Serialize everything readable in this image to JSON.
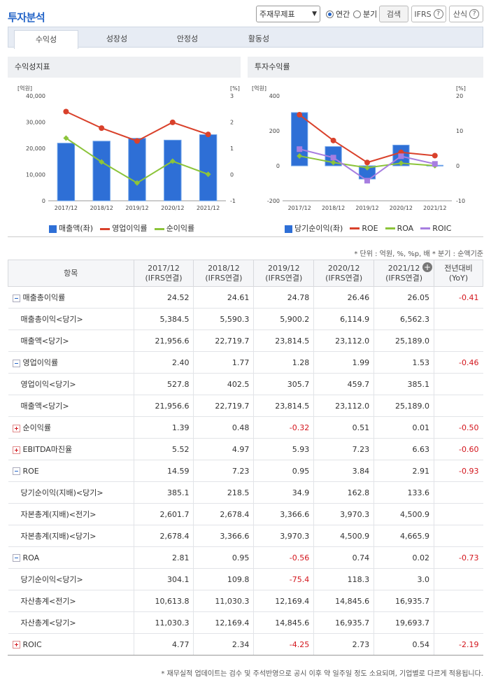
{
  "header": {
    "title": "투자분석",
    "select_value": "주재무제표",
    "radio_annual": "연간",
    "radio_quarter": "분기",
    "search_label": "검색",
    "ifrs_label": "IFRS",
    "formula_label": "산식"
  },
  "tabs": [
    "수익성",
    "성장성",
    "안정성",
    "활동성"
  ],
  "panels": {
    "left_title": "수익성지표",
    "right_title": "투자수익률"
  },
  "chart_data": [
    {
      "type": "bar",
      "title": "수익성지표",
      "categories": [
        "2017/12",
        "2018/12",
        "2019/12",
        "2020/12",
        "2021/12"
      ],
      "left_unit": "[억원]",
      "right_unit": "[%]",
      "ylim": [
        0,
        40000
      ],
      "y2lim": [
        -1,
        3
      ],
      "yticks": [
        "40,000",
        "30,000",
        "20,000",
        "10,000",
        "0"
      ],
      "y2ticks": [
        "3",
        "2",
        "1",
        "0",
        "-1"
      ],
      "series": [
        {
          "name": "매출액(좌)",
          "kind": "bar",
          "axis": "left",
          "color": "#2e6fd6",
          "values": [
            21956.6,
            22719.7,
            23814.5,
            23112.0,
            25189.0
          ]
        },
        {
          "name": "영업이익률",
          "kind": "line",
          "axis": "right",
          "color": "#d9412b",
          "values": [
            2.4,
            1.77,
            1.28,
            1.99,
            1.53
          ]
        },
        {
          "name": "순이익률",
          "kind": "line",
          "axis": "right",
          "color": "#8cc43a",
          "values": [
            1.39,
            0.48,
            -0.32,
            0.51,
            0.01
          ]
        }
      ]
    },
    {
      "type": "bar",
      "title": "투자수익률",
      "categories": [
        "2017/12",
        "2018/12",
        "2019/12",
        "2020/12",
        "2021/12"
      ],
      "left_unit": "[억원]",
      "right_unit": "[%]",
      "ylim": [
        -200,
        400
      ],
      "y2lim": [
        -10,
        20
      ],
      "yticks": [
        "400",
        "200",
        "0",
        "-200"
      ],
      "y2ticks": [
        "20",
        "10",
        "0",
        "-10"
      ],
      "series": [
        {
          "name": "당기순이익(좌)",
          "kind": "bar",
          "axis": "left",
          "color": "#2e6fd6",
          "values": [
            304.1,
            109.8,
            -75.4,
            118.3,
            3.0
          ]
        },
        {
          "name": "ROE",
          "kind": "line",
          "axis": "right",
          "color": "#d9412b",
          "values": [
            14.59,
            7.23,
            0.95,
            3.84,
            2.91
          ]
        },
        {
          "name": "ROA",
          "kind": "line",
          "axis": "right",
          "color": "#8cc43a",
          "values": [
            2.81,
            0.95,
            -0.56,
            0.74,
            0.02
          ]
        },
        {
          "name": "ROIC",
          "kind": "line",
          "axis": "right",
          "color": "#a77ee0",
          "values": [
            4.77,
            2.34,
            -4.25,
            2.73,
            0.54
          ]
        }
      ]
    }
  ],
  "unit_note": "* 단위 : 억원, %, %p, 배   * 분기 : 순액기준",
  "table": {
    "col_item": "항목",
    "columns": [
      {
        "year": "2017/12",
        "basis": "(IFRS연결)"
      },
      {
        "year": "2018/12",
        "basis": "(IFRS연결)"
      },
      {
        "year": "2019/12",
        "basis": "(IFRS연결)"
      },
      {
        "year": "2020/12",
        "basis": "(IFRS연결)"
      },
      {
        "year": "2021/12",
        "basis": "(IFRS연결)"
      }
    ],
    "col_yoy": "전년대비",
    "col_yoy2": "(YoY)",
    "rows": [
      {
        "label": "매출총이익률",
        "level": "main",
        "toggle": "minus",
        "values": [
          "24.52",
          "24.61",
          "24.78",
          "26.46",
          "26.05"
        ],
        "yoy": "-0.41"
      },
      {
        "label": "매출총이익<당기>",
        "level": "sub",
        "values": [
          "5,384.5",
          "5,590.3",
          "5,900.2",
          "6,114.9",
          "6,562.3"
        ],
        "yoy": ""
      },
      {
        "label": "매출액<당기>",
        "level": "sub",
        "values": [
          "21,956.6",
          "22,719.7",
          "23,814.5",
          "23,112.0",
          "25,189.0"
        ],
        "yoy": ""
      },
      {
        "label": "영업이익률",
        "level": "main",
        "toggle": "minus",
        "values": [
          "2.40",
          "1.77",
          "1.28",
          "1.99",
          "1.53"
        ],
        "yoy": "-0.46"
      },
      {
        "label": "영업이익<당기>",
        "level": "sub",
        "values": [
          "527.8",
          "402.5",
          "305.7",
          "459.7",
          "385.1"
        ],
        "yoy": ""
      },
      {
        "label": "매출액<당기>",
        "level": "sub",
        "values": [
          "21,956.6",
          "22,719.7",
          "23,814.5",
          "23,112.0",
          "25,189.0"
        ],
        "yoy": ""
      },
      {
        "label": "순이익률",
        "level": "main",
        "toggle": "plus",
        "values": [
          "1.39",
          "0.48",
          "-0.32",
          "0.51",
          "0.01"
        ],
        "yoy": "-0.50"
      },
      {
        "label": "EBITDA마진율",
        "level": "main",
        "toggle": "plus",
        "values": [
          "5.52",
          "4.97",
          "5.93",
          "7.23",
          "6.63"
        ],
        "yoy": "-0.60"
      },
      {
        "label": "ROE",
        "level": "main",
        "toggle": "minus",
        "values": [
          "14.59",
          "7.23",
          "0.95",
          "3.84",
          "2.91"
        ],
        "yoy": "-0.93"
      },
      {
        "label": "당기순이익(지배)<당기>",
        "level": "sub",
        "values": [
          "385.1",
          "218.5",
          "34.9",
          "162.8",
          "133.6"
        ],
        "yoy": ""
      },
      {
        "label": "자본총계(지배)<전기>",
        "level": "sub",
        "values": [
          "2,601.7",
          "2,678.4",
          "3,366.6",
          "3,970.3",
          "4,500.9"
        ],
        "yoy": ""
      },
      {
        "label": "자본총계(지배)<당기>",
        "level": "sub",
        "values": [
          "2,678.4",
          "3,366.6",
          "3,970.3",
          "4,500.9",
          "4,665.9"
        ],
        "yoy": ""
      },
      {
        "label": "ROA",
        "level": "main",
        "toggle": "minus",
        "values": [
          "2.81",
          "0.95",
          "-0.56",
          "0.74",
          "0.02"
        ],
        "yoy": "-0.73"
      },
      {
        "label": "당기순이익<당기>",
        "level": "sub",
        "values": [
          "304.1",
          "109.8",
          "-75.4",
          "118.3",
          "3.0"
        ],
        "yoy": ""
      },
      {
        "label": "자산총계<전기>",
        "level": "sub",
        "values": [
          "10,613.8",
          "11,030.3",
          "12,169.4",
          "14,845.6",
          "16,935.7"
        ],
        "yoy": ""
      },
      {
        "label": "자산총계<당기>",
        "level": "sub",
        "values": [
          "11,030.3",
          "12,169.4",
          "14,845.6",
          "16,935.7",
          "19,693.7"
        ],
        "yoy": ""
      },
      {
        "label": "ROIC",
        "level": "main",
        "toggle": "plus",
        "values": [
          "4.77",
          "2.34",
          "-4.25",
          "2.73",
          "0.54"
        ],
        "yoy": "-2.19"
      }
    ]
  },
  "footer_note": "* 재무실적 업데이트는 검수 및 주석반영으로 공시 이후 약 일주일 정도 소요되며, 기업별로 다르게 적용됩니다."
}
